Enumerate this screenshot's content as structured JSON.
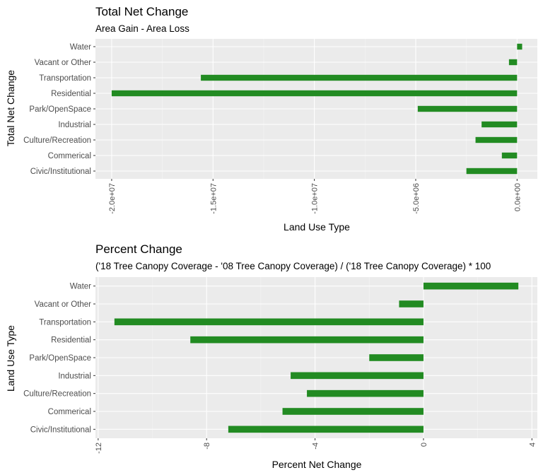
{
  "chart_data": [
    {
      "type": "bar",
      "orientation": "horizontal",
      "title": "Total Net Change",
      "subtitle": "Area Gain - Area Loss",
      "xlabel": "Land Use Type",
      "ylabel": "Total Net Change",
      "categories": [
        "Water",
        "Vacant or Other",
        "Transportation",
        "Residential",
        "Park/OpenSpace",
        "Industrial",
        "Culture/Recreation",
        "Commerical",
        "Civic/Institutional"
      ],
      "values": [
        250000,
        -400000,
        -15600000,
        -20000000,
        -4900000,
        -1750000,
        -2050000,
        -750000,
        -2500000
      ],
      "xlim": [
        -20800000,
        1000000
      ],
      "ticks": [
        -20000000,
        -15000000,
        -10000000,
        -5000000,
        0
      ],
      "tick_labels": [
        "-2.0e+07",
        "-1.5e+07",
        "-1.0e+07",
        "-5.0e+06",
        "0.0e+00"
      ],
      "bar_color": "#228B22",
      "grid": true
    },
    {
      "type": "bar",
      "orientation": "horizontal",
      "title": "Percent Change",
      "subtitle": "('18 Tree Canopy Coverage - '08 Tree Canopy Coverage) / ('18 Tree Canopy Coverage) * 100",
      "xlabel": "Percent Net Change",
      "ylabel": "Land Use Type",
      "categories": [
        "Water",
        "Vacant or Other",
        "Transportation",
        "Residential",
        "Park/OpenSpace",
        "Industrial",
        "Culture/Recreation",
        "Commerical",
        "Civic/Institutional"
      ],
      "values": [
        3.5,
        -0.9,
        -11.4,
        -8.6,
        -2.0,
        -4.9,
        -4.3,
        -5.2,
        -7.2
      ],
      "xlim": [
        -12.1,
        4.2
      ],
      "ticks": [
        -12,
        -8,
        -4,
        0,
        4
      ],
      "tick_labels": [
        "-12",
        "-8",
        "-4",
        "0",
        "4"
      ],
      "bar_color": "#228B22",
      "grid": true
    }
  ]
}
